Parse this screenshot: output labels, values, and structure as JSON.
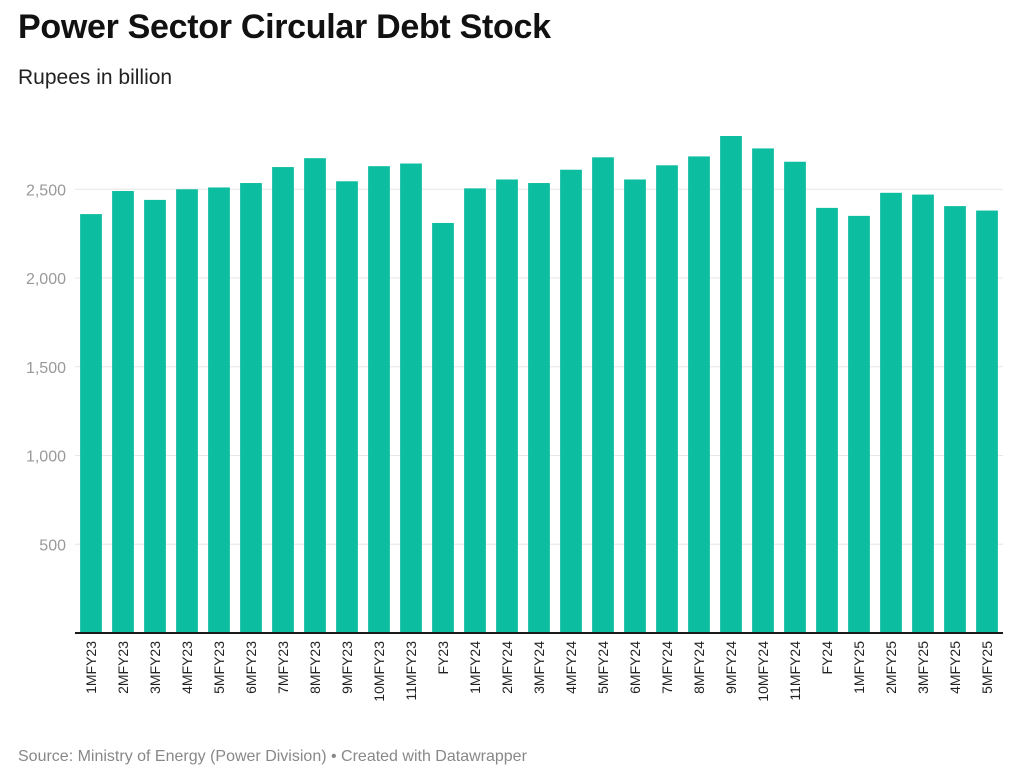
{
  "header": {
    "title": "Power Sector Circular Debt Stock",
    "subtitle": "Rupees in billion"
  },
  "footer": {
    "source": "Source: Ministry of Energy (Power Division) • Created with Datawrapper"
  },
  "colors": {
    "bar": "#0dbd9f",
    "grid": "#e6e6e6",
    "axis": "#1a1a1a"
  },
  "chart_data": {
    "type": "bar",
    "title": "Power Sector Circular Debt Stock",
    "subtitle": "Rupees in billion",
    "xlabel": "",
    "ylabel": "",
    "ylim": [
      0,
      2900
    ],
    "yticks": [
      500,
      1000,
      1500,
      2000,
      2500
    ],
    "ytick_labels": [
      "500",
      "1,000",
      "1,500",
      "2,000",
      "2,500"
    ],
    "grid": true,
    "categories": [
      "1MFY23",
      "2MFY23",
      "3MFY23",
      "4MFY23",
      "5MFY23",
      "6MFY23",
      "7MFY23",
      "8MFY23",
      "9MFY23",
      "10MFY23",
      "11MFY23",
      "FY23",
      "1MFY24",
      "2MFY24",
      "3MFY24",
      "4MFY24",
      "5MFY24",
      "6MFY24",
      "7MFY24",
      "8MFY24",
      "9MFY24",
      "10MFY24",
      "11MFY24",
      "FY24",
      "1MFY25",
      "2MFY25",
      "3MFY25",
      "4MFY25",
      "5MFY25"
    ],
    "values": [
      2360,
      2490,
      2440,
      2500,
      2510,
      2535,
      2625,
      2675,
      2545,
      2630,
      2645,
      2310,
      2505,
      2555,
      2535,
      2610,
      2680,
      2555,
      2635,
      2685,
      2800,
      2730,
      2655,
      2395,
      2350,
      2480,
      2470,
      2405,
      2380
    ]
  }
}
